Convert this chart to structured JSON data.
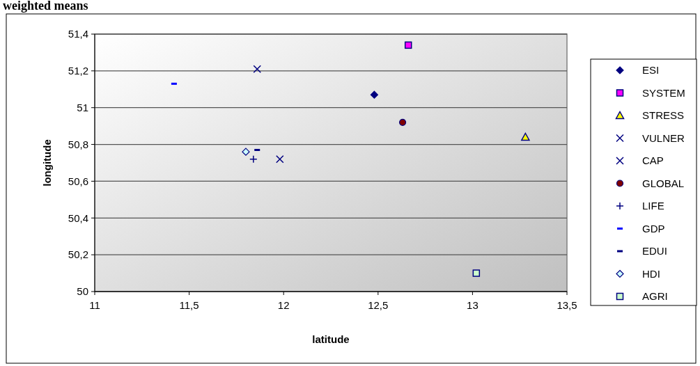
{
  "chart_data": {
    "type": "scatter",
    "title": "weighted means",
    "xlabel": "latitude",
    "ylabel": "longitude",
    "xlim": [
      11,
      13.5
    ],
    "xticks": [
      11,
      {
        "value": 11.5,
        "label": "11,5"
      },
      12,
      {
        "value": 12.5,
        "label": "12,5"
      },
      13,
      {
        "value": 13.5,
        "label": "13,5"
      }
    ],
    "ylim": [
      50,
      51.4
    ],
    "yticks": [
      50,
      {
        "value": 50.2,
        "label": "50,2"
      },
      {
        "value": 50.4,
        "label": "50,4"
      },
      {
        "value": 50.6,
        "label": "50,6"
      },
      {
        "value": 50.8,
        "label": "50,8"
      },
      51,
      {
        "value": 51.2,
        "label": "51,2"
      },
      {
        "value": 51.4,
        "label": "51,4"
      }
    ],
    "grid": "y",
    "legend": "right",
    "series": [
      {
        "name": "ESI",
        "color": "#000080",
        "marker": "diamond",
        "x": [
          12.48
        ],
        "values": [
          51.07
        ]
      },
      {
        "name": "SYSTEM",
        "color": "#ff00ff",
        "marker": "square",
        "x": [
          12.66
        ],
        "values": [
          51.34
        ]
      },
      {
        "name": "STRESS",
        "color": "#ffff00",
        "marker": "triangle",
        "x": [
          13.28
        ],
        "values": [
          50.84
        ]
      },
      {
        "name": "VULNER",
        "color": "#000080",
        "marker": "cross",
        "x": [
          11.98
        ],
        "values": [
          50.72
        ]
      },
      {
        "name": "CAP",
        "color": "#000080",
        "marker": "cross",
        "x": [
          11.86
        ],
        "values": [
          51.21
        ]
      },
      {
        "name": "GLOBAL",
        "color": "#800000",
        "marker": "circle",
        "x": [
          12.63
        ],
        "values": [
          50.92
        ]
      },
      {
        "name": "LIFE",
        "color": "#000080",
        "marker": "plus",
        "x": [
          11.84
        ],
        "values": [
          50.72
        ]
      },
      {
        "name": "GDP",
        "color": "#0000ff",
        "x": [
          11.42
        ],
        "values": [
          51.13
        ]
      },
      {
        "name": "EDUI",
        "color": "#000080",
        "x": [
          11.86
        ],
        "values": [
          50.77
        ]
      },
      {
        "name": "HDI",
        "color": "#ccffff",
        "marker": "diamond",
        "x": [
          11.8
        ],
        "values": [
          50.76
        ]
      },
      {
        "name": "AGRI",
        "color": "#ccffcc",
        "marker": "square",
        "x": [
          13.02
        ],
        "values": [
          50.1
        ]
      }
    ]
  }
}
